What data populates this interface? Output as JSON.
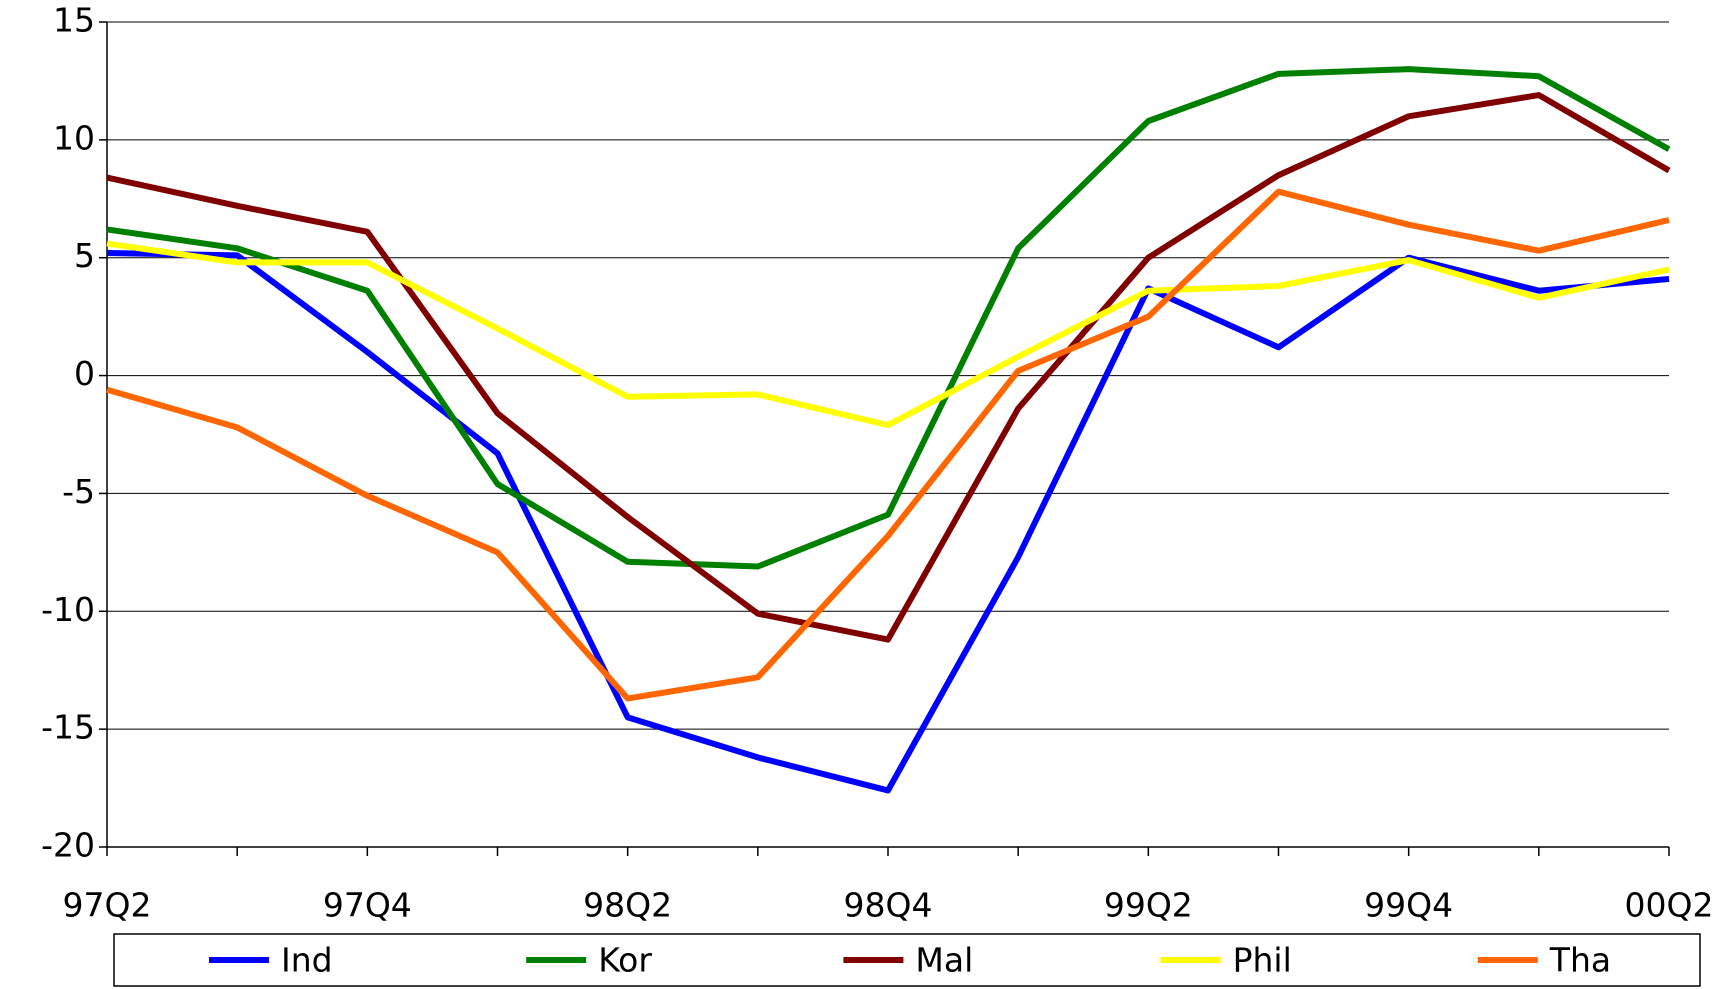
{
  "chart_data": {
    "type": "line",
    "categories": [
      "97Q2",
      null,
      "97Q4",
      null,
      "98Q2",
      null,
      "98Q4",
      null,
      "99Q2",
      null,
      "99Q4",
      null,
      "00Q2"
    ],
    "series": [
      {
        "name": "Ind",
        "color": "#0000ff",
        "values": [
          5.2,
          5.1,
          1.0,
          -3.3,
          -14.5,
          -16.2,
          -17.6,
          -7.7,
          3.7,
          1.2,
          5.0,
          3.6,
          4.1
        ]
      },
      {
        "name": "Kor",
        "color": "#008000",
        "values": [
          6.2,
          5.4,
          3.6,
          -4.6,
          -7.9,
          -8.1,
          -5.9,
          5.4,
          10.8,
          12.8,
          13.0,
          12.7,
          9.6
        ]
      },
      {
        "name": "Mal",
        "color": "#800000",
        "values": [
          8.4,
          7.2,
          6.1,
          -1.6,
          -6.0,
          -10.1,
          -11.2,
          -1.4,
          5.0,
          8.5,
          11.0,
          11.9,
          8.7
        ]
      },
      {
        "name": "Phil",
        "color": "#ffff00",
        "values": [
          5.6,
          4.8,
          4.8,
          2.0,
          -0.9,
          -0.8,
          -2.1,
          0.8,
          3.6,
          3.8,
          4.9,
          3.3,
          4.5
        ]
      },
      {
        "name": "Tha",
        "color": "#ff6600",
        "values": [
          -0.6,
          -2.2,
          -5.1,
          -7.5,
          -13.7,
          -12.8,
          -6.8,
          0.2,
          2.5,
          7.8,
          6.4,
          5.3,
          6.6
        ]
      }
    ],
    "ylim": [
      -20,
      15
    ],
    "yticks": [
      -20,
      -15,
      -10,
      -5,
      0,
      5,
      10,
      15
    ],
    "grid": true,
    "legend": "bottom"
  }
}
